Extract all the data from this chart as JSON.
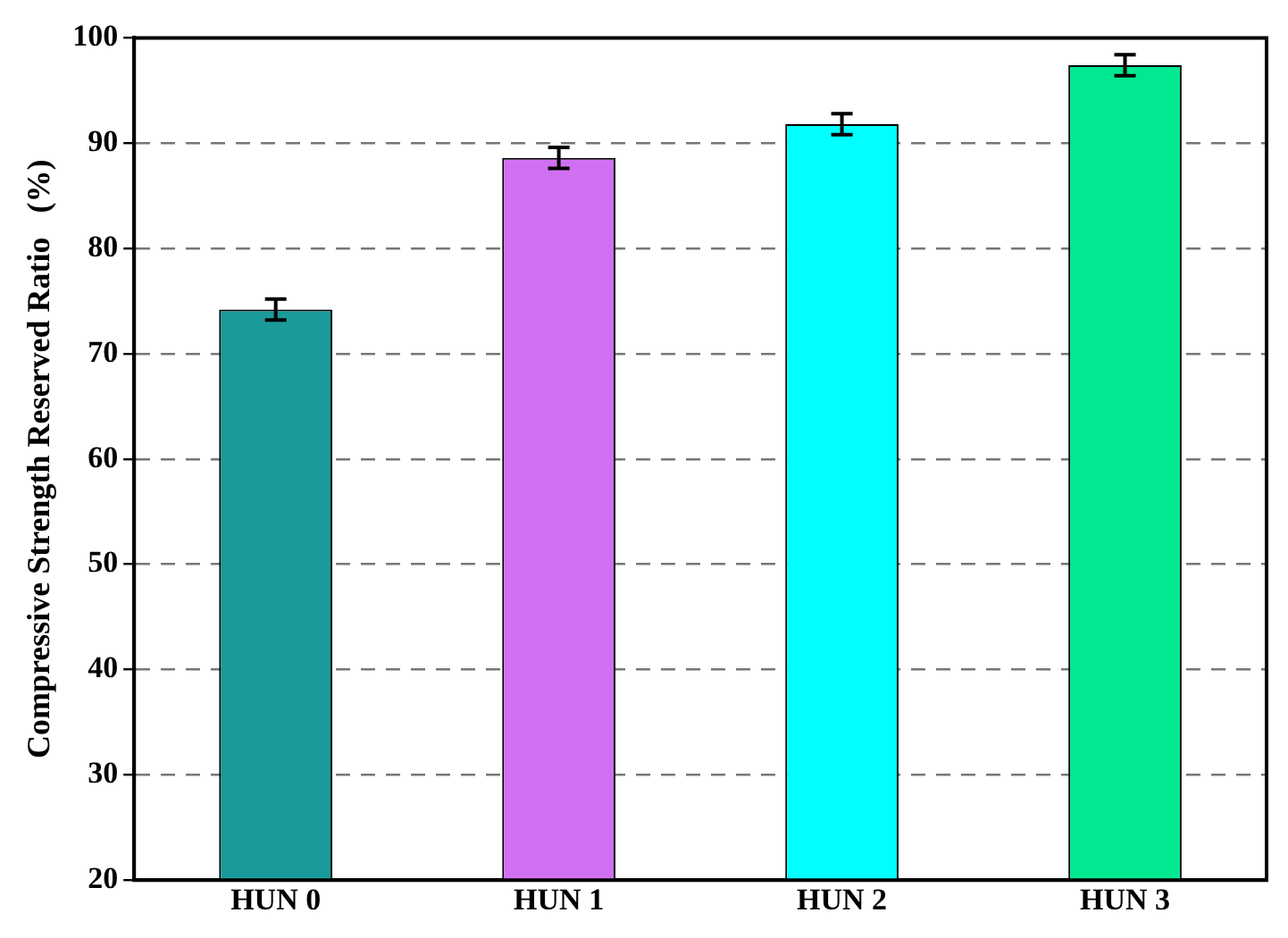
{
  "chart_data": {
    "type": "bar",
    "ylabel": "Compressive Strength Reserved Ratio   (%)",
    "categories": [
      "HUN 0",
      "HUN 1",
      "HUN 2",
      "HUN 3"
    ],
    "values": [
      74.2,
      88.6,
      91.8,
      97.4
    ],
    "errors": [
      1.0,
      1.0,
      1.0,
      1.0
    ],
    "colors": [
      "#1a9a9a",
      "#d070f0",
      "#00ffff",
      "#00e890"
    ],
    "ylim": [
      20,
      100
    ],
    "yticks": [
      20,
      30,
      40,
      50,
      60,
      70,
      80,
      90,
      100
    ],
    "grid": "y"
  }
}
